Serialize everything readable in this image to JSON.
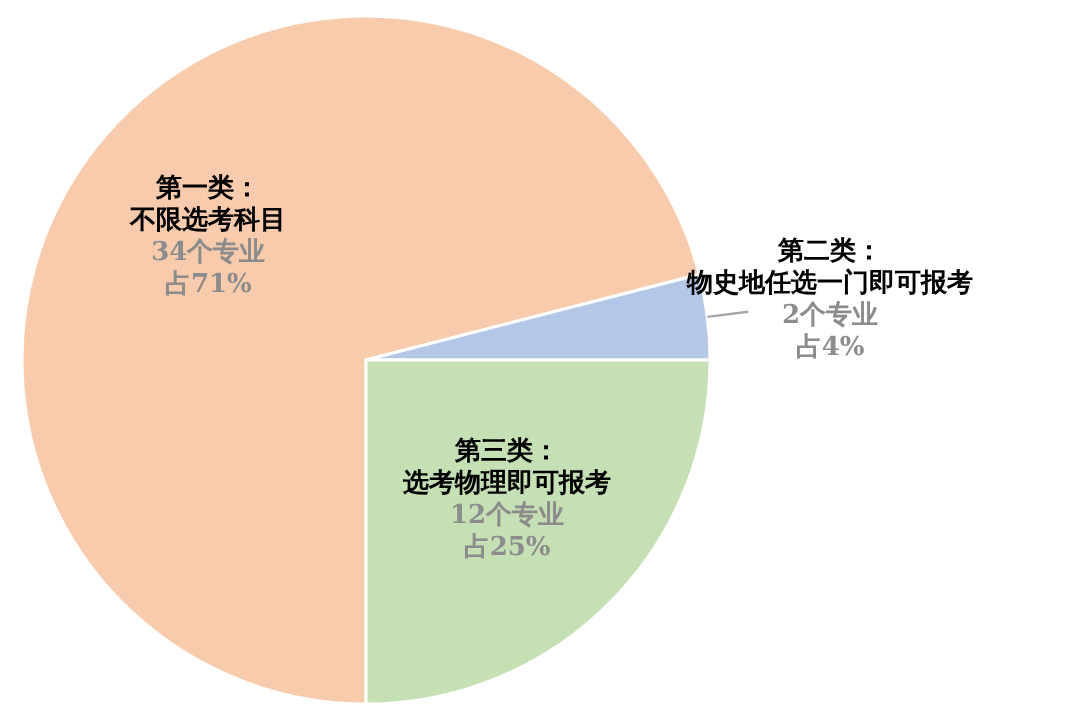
{
  "chart_data": {
    "type": "pie",
    "categories": [
      "第一类：不限选考科目",
      "第二类：物史地任选一门即可报考",
      "第三类：选考物理即可报考"
    ],
    "values": [
      71,
      4,
      25
    ],
    "colors": [
      "#f8cbad",
      "#b4c7e7",
      "#c5e0b4"
    ],
    "value_labels": [
      "34个专业占71%",
      "2个专业占4%",
      "12个专业占25%"
    ]
  }
}
